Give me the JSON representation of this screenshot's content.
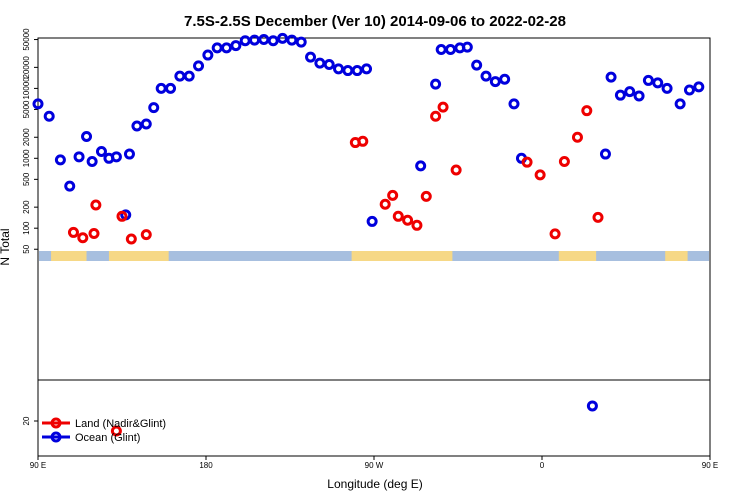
{
  "chart_data": {
    "type": "scatter",
    "title": "7.5S-2.5S December (Ver 10)   2014-09-06 to 2022-02-28",
    "xlabel": "Longitude (deg E)",
    "ylabel": "N Total",
    "xlim": [
      90,
      450
    ],
    "x_ticks": [
      {
        "value": 90,
        "label": "90 E"
      },
      {
        "value": 180,
        "label": "180"
      },
      {
        "value": 270,
        "label": "90 W"
      },
      {
        "value": 360,
        "label": "0"
      },
      {
        "value": 450,
        "label": "90 E"
      },
      {
        "value": 540,
        "label": "180"
      }
    ],
    "y_scale": "log",
    "y_ticks_upper": [
      "50",
      "100",
      "200",
      "500",
      "1000",
      "2000",
      "5000",
      "10000",
      "20000",
      "50000"
    ],
    "y_ticks_lower": [
      "20"
    ],
    "upper_ylim": [
      50,
      70000
    ],
    "lower_ylim": [
      12,
      50
    ],
    "colors": {
      "land": "#ee0000",
      "ocean": "#0000dd",
      "band_ocean": "#a7bfdf",
      "band_land": "#f6d886"
    },
    "legend": {
      "position": "bottom-left",
      "entries": [
        {
          "label": "Land (Nadir&Glint)",
          "color": "#ee0000"
        },
        {
          "label": "Ocean (Glint)",
          "color": "#0000dd"
        }
      ]
    },
    "series": [
      {
        "name": "Ocean (Glint)",
        "color": "#0000dd",
        "points": [
          [
            90,
            6000
          ],
          [
            96,
            4000
          ],
          [
            102,
            950
          ],
          [
            107,
            400
          ],
          [
            112,
            1050
          ],
          [
            116,
            2050
          ],
          [
            119,
            900
          ],
          [
            124,
            1250
          ],
          [
            128,
            1000
          ],
          [
            132,
            1050
          ],
          [
            137,
            155
          ],
          [
            139,
            1150
          ],
          [
            143,
            2900
          ],
          [
            148,
            3100
          ],
          [
            152,
            5300
          ],
          [
            156,
            10000
          ],
          [
            161,
            10000
          ],
          [
            166,
            15000
          ],
          [
            171,
            15000
          ],
          [
            176,
            21000
          ],
          [
            181,
            30000
          ],
          [
            186,
            38000
          ],
          [
            191,
            38000
          ],
          [
            196,
            41000
          ],
          [
            201,
            48000
          ],
          [
            206,
            49000
          ],
          [
            211,
            50000
          ],
          [
            216,
            48000
          ],
          [
            221,
            52000
          ],
          [
            226,
            49000
          ],
          [
            231,
            46000
          ],
          [
            236,
            28000
          ],
          [
            241,
            23000
          ],
          [
            246,
            22000
          ],
          [
            251,
            19000
          ],
          [
            256,
            18000
          ],
          [
            261,
            18000
          ],
          [
            266,
            19000
          ],
          [
            269,
            125
          ],
          [
            295,
            780
          ],
          [
            303,
            11500
          ],
          [
            306,
            36000
          ],
          [
            311,
            36000
          ],
          [
            316,
            38000
          ],
          [
            320,
            39000
          ],
          [
            325,
            21500
          ],
          [
            330,
            15000
          ],
          [
            335,
            12500
          ],
          [
            340,
            13500
          ],
          [
            345,
            6000
          ],
          [
            349,
            1000
          ],
          [
            387,
            28
          ],
          [
            394,
            1150
          ],
          [
            397,
            14500
          ],
          [
            402,
            8000
          ],
          [
            407,
            9000
          ],
          [
            412,
            7800
          ],
          [
            417,
            13000
          ],
          [
            422,
            12000
          ],
          [
            427,
            10000
          ],
          [
            434,
            6000
          ],
          [
            439,
            9500
          ],
          [
            444,
            10500
          ]
        ]
      },
      {
        "name": "Land (Nadir&Glint)",
        "color": "#ee0000",
        "points": [
          [
            109,
            87
          ],
          [
            114,
            73
          ],
          [
            120,
            84
          ],
          [
            121,
            215
          ],
          [
            132,
            16
          ],
          [
            135,
            148
          ],
          [
            140,
            70
          ],
          [
            148,
            81
          ],
          [
            260,
            1680
          ],
          [
            264,
            1750
          ],
          [
            276,
            220
          ],
          [
            280,
            295
          ],
          [
            283,
            148
          ],
          [
            288,
            130
          ],
          [
            293,
            110
          ],
          [
            298,
            285
          ],
          [
            303,
            4000
          ],
          [
            307,
            5400
          ],
          [
            314,
            680
          ],
          [
            352,
            880
          ],
          [
            359,
            580
          ],
          [
            367,
            83
          ],
          [
            372,
            900
          ],
          [
            379,
            2000
          ],
          [
            384,
            4800
          ],
          [
            390,
            143
          ]
        ]
      }
    ]
  }
}
